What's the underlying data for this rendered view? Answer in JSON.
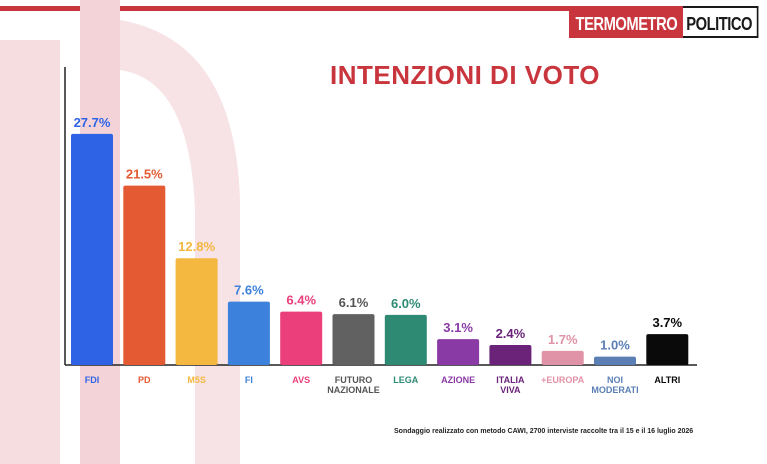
{
  "header": {
    "logo_left": "TERMOMETRO",
    "logo_right": "POLITICO",
    "title": "INTENZIONI DI VOTO"
  },
  "footnote": "Sondaggio realizzato con metodo CAWI, 2700 interviste raccolte tra il 15 e il 16 luglio 2026",
  "colors": {
    "brand_red": "#c9353d"
  },
  "chart_data": {
    "type": "bar",
    "categories": [
      "FDI",
      "PD",
      "M5S",
      "FI",
      "AVS",
      "FUTURO NAZIONALE",
      "LEGA",
      "AZIONE",
      "ITALIA VIVA",
      "+EUROPA",
      "NOI MODERATI",
      "ALTRI"
    ],
    "category_lines": [
      [
        "FDI"
      ],
      [
        "PD"
      ],
      [
        "M5S"
      ],
      [
        "FI"
      ],
      [
        "AVS"
      ],
      [
        "FUTURO",
        "NAZIONALE"
      ],
      [
        "LEGA"
      ],
      [
        "AZIONE"
      ],
      [
        "ITALIA",
        "VIVA"
      ],
      [
        "+EUROPA"
      ],
      [
        "NOI",
        "MODERATI"
      ],
      [
        "ALTRI"
      ]
    ],
    "values": [
      27.7,
      21.5,
      12.8,
      7.6,
      6.4,
      6.1,
      6.0,
      3.1,
      2.4,
      1.7,
      1.0,
      3.7
    ],
    "value_labels": [
      "27.7%",
      "21.5%",
      "12.8%",
      "7.6%",
      "6.4%",
      "6.1%",
      "6.0%",
      "3.1%",
      "2.4%",
      "1.7%",
      "1.0%",
      "3.7%"
    ],
    "colors": [
      "#2f63e6",
      "#e45a33",
      "#f4b740",
      "#3c82dc",
      "#ea3f7b",
      "#616161",
      "#2f8a74",
      "#8a3aa5",
      "#6a2379",
      "#e092a6",
      "#5b7fb5",
      "#0a0a0a"
    ],
    "label_colors": [
      "#2f63e6",
      "#e45a33",
      "#f4b740",
      "#3c82dc",
      "#ea3f7b",
      "#555555",
      "#2f8a74",
      "#8a3aa5",
      "#6a2379",
      "#e092a6",
      "#5b7fb5",
      "#0a0a0a"
    ],
    "ylim": [
      0,
      30
    ],
    "grid": false,
    "legend": "none"
  }
}
